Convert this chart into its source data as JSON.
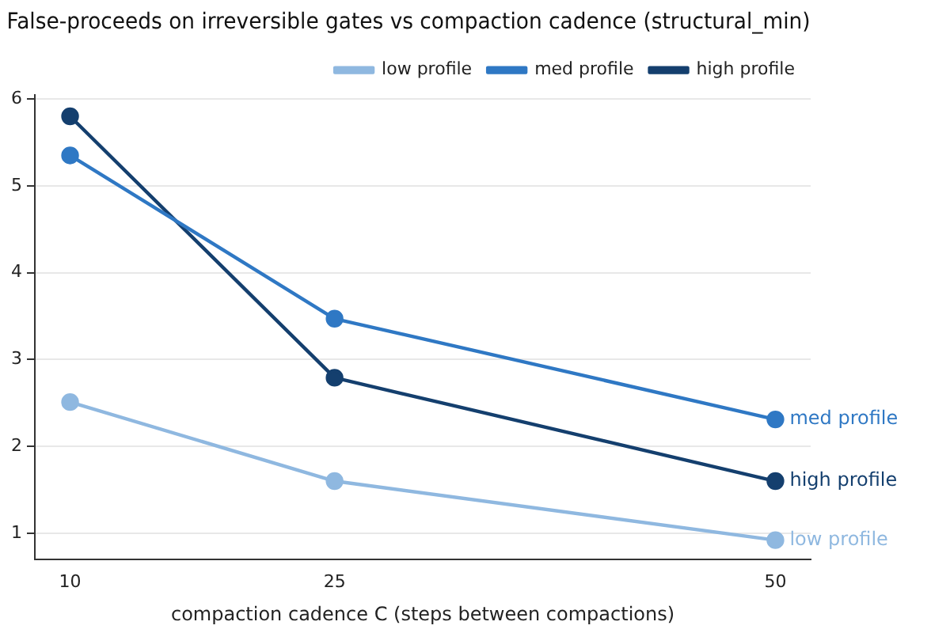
{
  "chart_data": {
    "type": "line",
    "title": "False-proceeds on irreversible gates vs compaction cadence (structural_min)",
    "xlabel": "compaction cadence C (steps between compactions)",
    "x": [
      10,
      25,
      50
    ],
    "series": [
      {
        "name": "low profile",
        "color": "#8fb8e0",
        "values": [
          2.51,
          1.6,
          0.92
        ]
      },
      {
        "name": "med profile",
        "color": "#2f78c4",
        "values": [
          5.35,
          3.47,
          2.31
        ]
      },
      {
        "name": "high profile",
        "color": "#143f6e",
        "values": [
          5.8,
          2.79,
          1.6
        ]
      }
    ],
    "xlim": [
      8,
      52
    ],
    "xticks": [
      10,
      25,
      50
    ],
    "ylim": [
      0.7,
      6.05
    ],
    "yticks": [
      1,
      2,
      3,
      4,
      5,
      6
    ],
    "grid": "y",
    "legend": "top right",
    "marker": "circle",
    "line_style": "solid"
  }
}
